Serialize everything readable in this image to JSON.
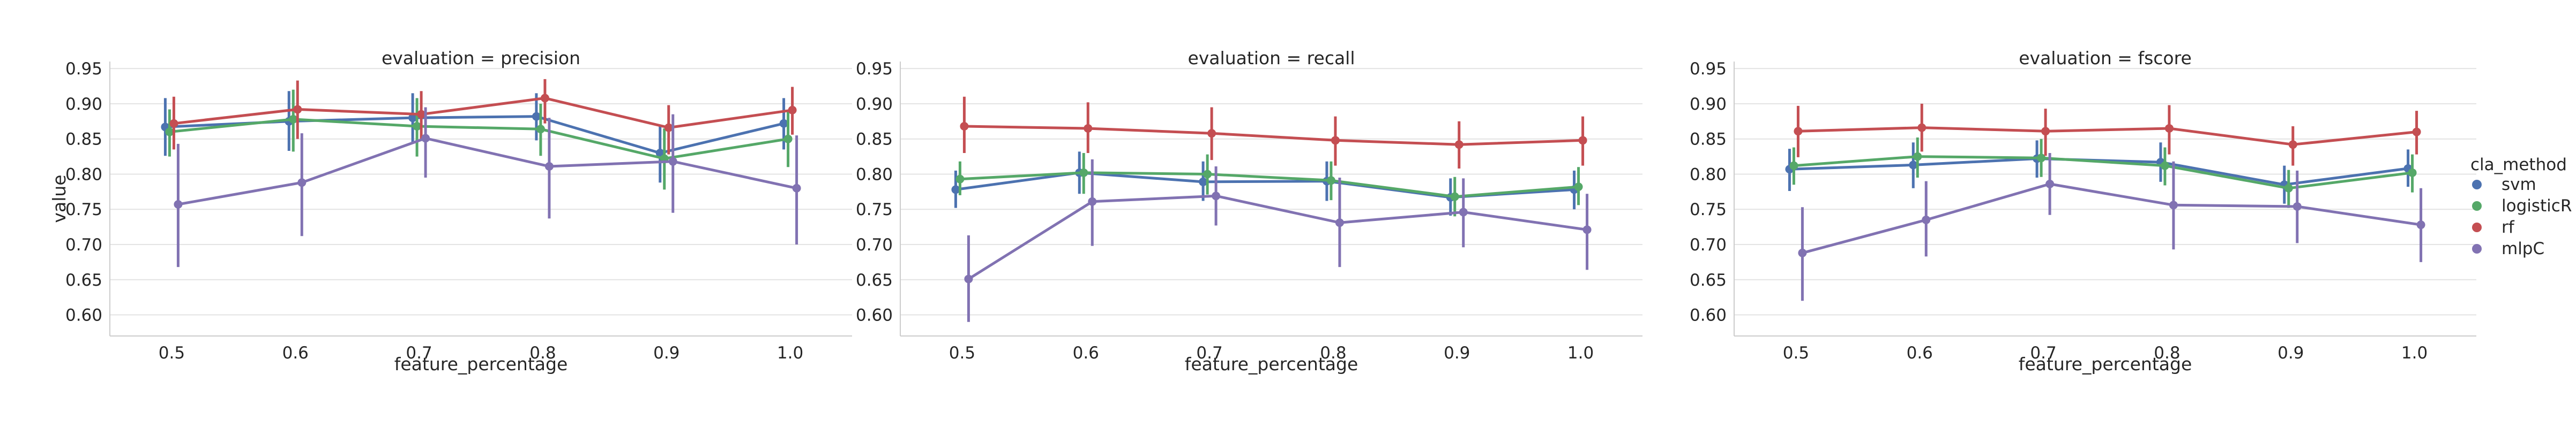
{
  "chart_data": {
    "type": "line",
    "facet_col": "evaluation",
    "x_label": "feature_percentage",
    "y_label": "value",
    "categories": [
      "0.5",
      "0.6",
      "0.7",
      "0.8",
      "0.9",
      "1.0"
    ],
    "ylim": [
      0.57,
      0.96
    ],
    "yticks": [
      "0.60",
      "0.65",
      "0.70",
      "0.75",
      "0.80",
      "0.85",
      "0.90",
      "0.95"
    ],
    "grid": "horizontal",
    "error_bars": true,
    "legend": {
      "title": "cla_method",
      "placement": "right",
      "entries": [
        {
          "name": "svm",
          "color": "#4c72b0"
        },
        {
          "name": "logisticR",
          "color": "#55a868"
        },
        {
          "name": "rf",
          "color": "#c44e52"
        },
        {
          "name": "mlpC",
          "color": "#8172b2"
        }
      ]
    },
    "panels": [
      {
        "title": "evaluation = precision",
        "series": [
          {
            "name": "svm",
            "values": [
              0.867,
              0.875,
              0.88,
              0.882,
              0.83,
              0.872
            ],
            "err_low": [
              0.826,
              0.833,
              0.845,
              0.848,
              0.788,
              0.835
            ],
            "err_high": [
              0.908,
              0.918,
              0.915,
              0.915,
              0.87,
              0.908
            ]
          },
          {
            "name": "logisticR",
            "values": [
              0.86,
              0.878,
              0.868,
              0.864,
              0.822,
              0.85
            ],
            "err_low": [
              0.825,
              0.832,
              0.825,
              0.826,
              0.778,
              0.81
            ],
            "err_high": [
              0.892,
              0.92,
              0.908,
              0.9,
              0.865,
              0.889
            ]
          },
          {
            "name": "rf",
            "values": [
              0.872,
              0.892,
              0.885,
              0.908,
              0.866,
              0.891
            ],
            "err_low": [
              0.835,
              0.85,
              0.85,
              0.872,
              0.828,
              0.856
            ],
            "err_high": [
              0.91,
              0.933,
              0.918,
              0.935,
              0.898,
              0.924
            ]
          },
          {
            "name": "mlpC",
            "values": [
              0.757,
              0.788,
              0.851,
              0.811,
              0.818,
              0.78
            ],
            "err_low": [
              0.668,
              0.712,
              0.795,
              0.737,
              0.745,
              0.7
            ],
            "err_high": [
              0.843,
              0.858,
              0.895,
              0.88,
              0.885,
              0.855
            ]
          }
        ]
      },
      {
        "title": "evaluation = recall",
        "series": [
          {
            "name": "svm",
            "values": [
              0.778,
              0.802,
              0.789,
              0.79,
              0.767,
              0.778
            ],
            "err_low": [
              0.752,
              0.772,
              0.762,
              0.762,
              0.741,
              0.75
            ],
            "err_high": [
              0.805,
              0.832,
              0.818,
              0.818,
              0.794,
              0.805
            ]
          },
          {
            "name": "logisticR",
            "values": [
              0.793,
              0.802,
              0.8,
              0.791,
              0.768,
              0.782
            ],
            "err_low": [
              0.77,
              0.772,
              0.771,
              0.763,
              0.74,
              0.756
            ],
            "err_high": [
              0.818,
              0.83,
              0.828,
              0.818,
              0.796,
              0.81
            ]
          },
          {
            "name": "rf",
            "values": [
              0.868,
              0.865,
              0.858,
              0.848,
              0.842,
              0.848
            ],
            "err_low": [
              0.83,
              0.83,
              0.82,
              0.812,
              0.808,
              0.812
            ],
            "err_high": [
              0.91,
              0.902,
              0.895,
              0.882,
              0.875,
              0.882
            ]
          },
          {
            "name": "mlpC",
            "values": [
              0.651,
              0.761,
              0.769,
              0.731,
              0.746,
              0.721
            ],
            "err_low": [
              0.59,
              0.698,
              0.727,
              0.668,
              0.696,
              0.664
            ],
            "err_high": [
              0.713,
              0.821,
              0.811,
              0.795,
              0.794,
              0.772
            ]
          }
        ]
      },
      {
        "title": "evaluation = fscore",
        "series": [
          {
            "name": "svm",
            "values": [
              0.807,
              0.813,
              0.822,
              0.817,
              0.785,
              0.808
            ],
            "err_low": [
              0.776,
              0.78,
              0.795,
              0.789,
              0.758,
              0.782
            ],
            "err_high": [
              0.836,
              0.845,
              0.848,
              0.845,
              0.812,
              0.835
            ]
          },
          {
            "name": "logisticR",
            "values": [
              0.812,
              0.825,
              0.823,
              0.812,
              0.78,
              0.802
            ],
            "err_low": [
              0.785,
              0.795,
              0.796,
              0.784,
              0.752,
              0.774
            ],
            "err_high": [
              0.838,
              0.852,
              0.85,
              0.838,
              0.806,
              0.828
            ]
          },
          {
            "name": "rf",
            "values": [
              0.861,
              0.866,
              0.861,
              0.865,
              0.842,
              0.86
            ],
            "err_low": [
              0.824,
              0.832,
              0.826,
              0.828,
              0.812,
              0.828
            ],
            "err_high": [
              0.897,
              0.9,
              0.893,
              0.898,
              0.868,
              0.89
            ]
          },
          {
            "name": "mlpC",
            "values": [
              0.688,
              0.735,
              0.786,
              0.756,
              0.754,
              0.728
            ],
            "err_low": [
              0.62,
              0.683,
              0.742,
              0.693,
              0.702,
              0.675
            ],
            "err_high": [
              0.753,
              0.79,
              0.83,
              0.818,
              0.805,
              0.78
            ]
          }
        ]
      }
    ]
  }
}
